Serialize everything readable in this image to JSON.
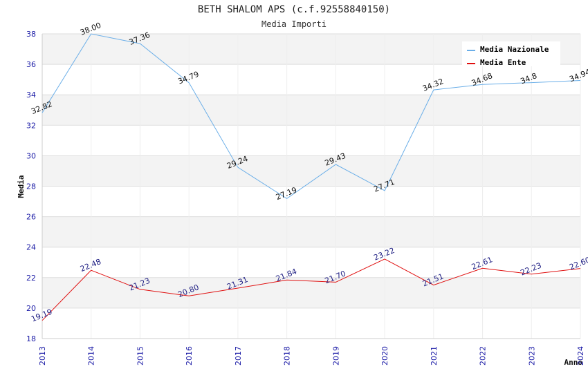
{
  "chart_data": {
    "type": "line",
    "title": "BETH SHALOM APS (c.f.92558840150)",
    "subtitle": "Media Importi",
    "xlabel": "Anno",
    "ylabel": "Media",
    "x": [
      "2013",
      "2014",
      "2015",
      "2016",
      "2017",
      "2018",
      "2019",
      "2020",
      "2021",
      "2022",
      "2023",
      "2024"
    ],
    "ylim": [
      18,
      38
    ],
    "yticks": [
      "18",
      "20",
      "22",
      "24",
      "26",
      "28",
      "30",
      "32",
      "34",
      "36",
      "38"
    ],
    "legend_position": "top-right",
    "series": [
      {
        "name": "Media Nazionale",
        "color": "#6aaee8",
        "values": [
          32.82,
          38.0,
          37.36,
          34.79,
          29.24,
          27.19,
          29.43,
          27.71,
          34.32,
          34.68,
          34.8,
          34.94
        ],
        "labels": [
          "32.82",
          "38.00",
          "37.36",
          "34.79",
          "29.24",
          "27.19",
          "29.43",
          "27.71",
          "34.32",
          "34.68",
          "34.8",
          "34.94"
        ]
      },
      {
        "name": "Media Ente",
        "color": "#e01010",
        "values": [
          19.19,
          22.48,
          21.23,
          20.8,
          21.31,
          21.84,
          21.7,
          23.22,
          21.51,
          22.61,
          22.23,
          22.6
        ],
        "labels": [
          "19.19",
          "22.48",
          "21.23",
          "20.80",
          "21.31",
          "21.84",
          "21.70",
          "23.22",
          "21.51",
          "22.61",
          "22.23",
          "22.60"
        ]
      }
    ]
  }
}
